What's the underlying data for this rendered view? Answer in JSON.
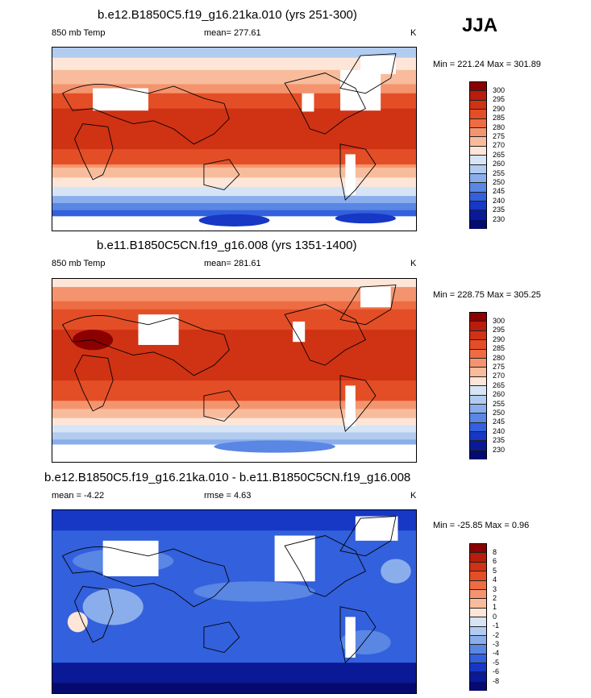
{
  "season": "JJA",
  "panels": [
    {
      "title": "b.e12.B1850C5.f19_g16.21ka.010 (yrs 251-300)",
      "left": "850 mb Temp",
      "center": "mean= 277.61",
      "right": "K",
      "minmax": "Min = 221.24 Max = 301.89",
      "levels": [
        "300",
        "295",
        "290",
        "285",
        "280",
        "275",
        "270",
        "265",
        "260",
        "255",
        "250",
        "245",
        "240",
        "235",
        "230"
      ],
      "colors": [
        "#8b0000",
        "#b71c0c",
        "#d03214",
        "#e34e26",
        "#ee6c44",
        "#f4946e",
        "#f8bc9c",
        "#fde6d8",
        "#d6e4f6",
        "#b2ccf0",
        "#8aaeec",
        "#5a86e4",
        "#3360dc",
        "#1638c4",
        "#0a1a96",
        "#050b6e"
      ]
    },
    {
      "title": "b.e11.B1850C5CN.f19_g16.008 (yrs 1351-1400)",
      "left": "850 mb Temp",
      "center": "mean= 281.61",
      "right": "K",
      "minmax": "Min = 228.75 Max = 305.25",
      "levels": [
        "300",
        "295",
        "290",
        "285",
        "280",
        "275",
        "270",
        "265",
        "260",
        "255",
        "250",
        "245",
        "240",
        "235",
        "230"
      ],
      "colors": [
        "#8b0000",
        "#b71c0c",
        "#d03214",
        "#e34e26",
        "#ee6c44",
        "#f4946e",
        "#f8bc9c",
        "#fde6d8",
        "#d6e4f6",
        "#b2ccf0",
        "#8aaeec",
        "#5a86e4",
        "#3360dc",
        "#1638c4",
        "#0a1a96",
        "#050b6e"
      ]
    },
    {
      "title": "b.e12.B1850C5.f19_g16.21ka.010 - b.e11.B1850C5CN.f19_g16.008",
      "left": "mean =  -4.22",
      "center": "rmse =   4.63",
      "right": "K",
      "minmax": "Min = -25.85 Max =   0.96",
      "levels": [
        "8",
        "6",
        "5",
        "4",
        "3",
        "2",
        "1",
        "0",
        "-1",
        "-2",
        "-3",
        "-4",
        "-5",
        "-6",
        "-8"
      ],
      "colors": [
        "#8b0000",
        "#b71c0c",
        "#d03214",
        "#e34e26",
        "#ee6c44",
        "#f4946e",
        "#f8bc9c",
        "#fde6d8",
        "#d6e4f6",
        "#b2ccf0",
        "#8aaeec",
        "#5a86e4",
        "#3360dc",
        "#1638c4",
        "#0a1a96",
        "#050b6e"
      ]
    }
  ]
}
